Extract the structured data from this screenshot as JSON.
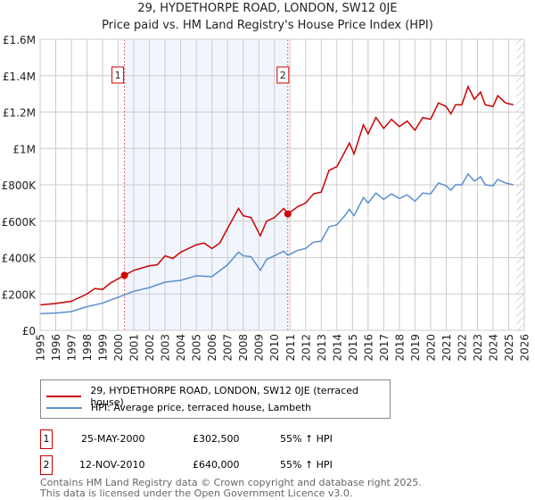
{
  "title": "29, HYDETHORPE ROAD, LONDON, SW12 0JE",
  "subtitle": "Price paid vs. HM Land Registry's House Price Index (HPI)",
  "chart_data": {
    "type": "line",
    "xlim": [
      1995,
      2026
    ],
    "ylim": [
      0,
      1600000
    ],
    "yticks": [
      {
        "v": 0,
        "label": "£0"
      },
      {
        "v": 200000,
        "label": "£200K"
      },
      {
        "v": 400000,
        "label": "£400K"
      },
      {
        "v": 600000,
        "label": "£600K"
      },
      {
        "v": 800000,
        "label": "£800K"
      },
      {
        "v": 1000000,
        "label": "£1M"
      },
      {
        "v": 1200000,
        "label": "£1.2M"
      },
      {
        "v": 1400000,
        "label": "£1.4M"
      },
      {
        "v": 1600000,
        "label": "£1.6M"
      }
    ],
    "xticks": [
      "1995",
      "1996",
      "1997",
      "1998",
      "1999",
      "2000",
      "2001",
      "2002",
      "2003",
      "2004",
      "2005",
      "2006",
      "2007",
      "2008",
      "2009",
      "2010",
      "2011",
      "2012",
      "2013",
      "2014",
      "2015",
      "2016",
      "2017",
      "2018",
      "2019",
      "2020",
      "2021",
      "2022",
      "2023",
      "2024",
      "2025",
      "2026"
    ],
    "series": [
      {
        "name": "29, HYDETHORPE ROAD, LONDON, SW12 0JE (terraced house)",
        "color": "#cc0000",
        "x": [
          1995,
          1996,
          1997,
          1998,
          1998.5,
          1999,
          1999.5,
          2000.4,
          2001,
          2002,
          2002.5,
          2003,
          2003.5,
          2004,
          2005,
          2005.5,
          2006,
          2006.5,
          2007,
          2007.7,
          2008,
          2008.5,
          2009.1,
          2009.5,
          2010,
          2010.6,
          2010.86,
          2011.5,
          2012,
          2012.5,
          2013,
          2013.5,
          2014,
          2014.5,
          2014.8,
          2015.1,
          2015.7,
          2016,
          2016.5,
          2017,
          2017.5,
          2018,
          2018.5,
          2019,
          2019.5,
          2020,
          2020.5,
          2021,
          2021.3,
          2021.6,
          2022,
          2022.4,
          2022.8,
          2023.2,
          2023.5,
          2024,
          2024.3,
          2024.8,
          2025.3
        ],
        "y": [
          140000,
          148000,
          160000,
          200000,
          230000,
          225000,
          260000,
          302500,
          330000,
          355000,
          360000,
          410000,
          395000,
          430000,
          470000,
          480000,
          450000,
          480000,
          560000,
          670000,
          630000,
          620000,
          520000,
          600000,
          620000,
          670000,
          640000,
          680000,
          700000,
          750000,
          760000,
          880000,
          900000,
          980000,
          1030000,
          970000,
          1130000,
          1080000,
          1170000,
          1110000,
          1160000,
          1120000,
          1150000,
          1100000,
          1170000,
          1160000,
          1250000,
          1230000,
          1190000,
          1240000,
          1240000,
          1340000,
          1270000,
          1310000,
          1240000,
          1230000,
          1290000,
          1250000,
          1240000
        ]
      },
      {
        "name": "HPI: Average price, terraced house, Lambeth",
        "color": "#5b8fd0",
        "x": [
          1995,
          1996,
          1997,
          1998,
          1999,
          2000.4,
          2001,
          2002,
          2003,
          2004,
          2005,
          2006,
          2007,
          2007.7,
          2008,
          2008.5,
          2009.1,
          2009.5,
          2010,
          2010.6,
          2010.86,
          2011.5,
          2012,
          2012.5,
          2013,
          2013.5,
          2014,
          2014.5,
          2014.8,
          2015.1,
          2015.7,
          2016,
          2016.5,
          2017,
          2017.5,
          2018,
          2018.5,
          2019,
          2019.5,
          2020,
          2020.5,
          2021,
          2021.3,
          2021.6,
          2022,
          2022.4,
          2022.8,
          2023.2,
          2023.5,
          2024,
          2024.3,
          2024.8,
          2025.3
        ],
        "y": [
          92000,
          95000,
          103000,
          130000,
          150000,
          195000,
          215000,
          235000,
          265000,
          275000,
          300000,
          295000,
          360000,
          430000,
          410000,
          405000,
          330000,
          390000,
          410000,
          435000,
          413000,
          440000,
          450000,
          485000,
          490000,
          570000,
          580000,
          630000,
          665000,
          630000,
          730000,
          700000,
          755000,
          720000,
          750000,
          725000,
          745000,
          710000,
          755000,
          750000,
          810000,
          795000,
          770000,
          800000,
          800000,
          860000,
          820000,
          845000,
          800000,
          795000,
          830000,
          810000,
          800000
        ]
      }
    ],
    "sales": [
      {
        "id": "1",
        "x": 2000.4,
        "y": 302500
      },
      {
        "id": "2",
        "x": 2010.86,
        "y": 640000
      }
    ],
    "legend": "below"
  },
  "table": [
    {
      "id": "1",
      "date": "25-MAY-2000",
      "price": "£302,500",
      "hpi": "55% ↑ HPI"
    },
    {
      "id": "2",
      "date": "12-NOV-2010",
      "price": "£640,000",
      "hpi": "55% ↑ HPI"
    }
  ],
  "footer": [
    "Contains HM Land Registry data © Crown copyright and database right 2025.",
    "This data is licensed under the Open Government Licence v3.0."
  ]
}
